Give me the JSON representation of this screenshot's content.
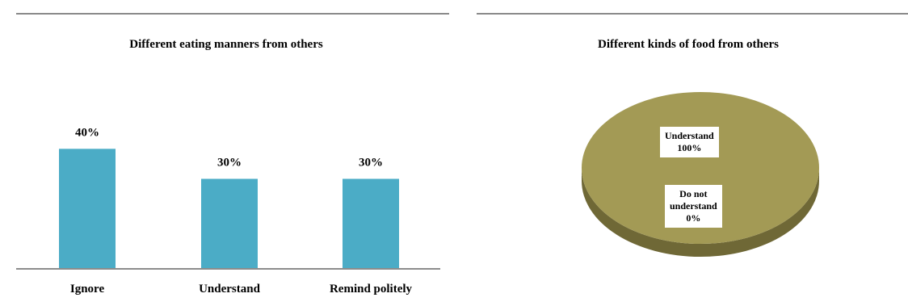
{
  "colors": {
    "bar": "#4bacc6",
    "pie_top": "#a39a55",
    "pie_side": "#6f6836",
    "axis": "#8c8c8c",
    "rule": "#8a8a8a"
  },
  "chart_data": [
    {
      "type": "bar",
      "title": "Different eating manners from others",
      "categories": [
        "Ignore",
        "Understand",
        "Remind politely"
      ],
      "values": [
        40,
        30,
        30
      ],
      "data_labels": [
        "40%",
        "30%",
        "30%"
      ],
      "ylim": [
        0,
        60
      ],
      "grid": false,
      "legend": "none"
    },
    {
      "type": "pie",
      "title": "Different kinds of food from others",
      "slices": [
        {
          "label": "Understand",
          "value": 100,
          "value_label": "100%"
        },
        {
          "label": "Do not understand",
          "value": 0,
          "value_label": "0%"
        }
      ],
      "label_lines": [
        [
          "Understand",
          "100%"
        ],
        [
          "Do not",
          "understand",
          "0%"
        ]
      ],
      "legend": "none",
      "style": "3d"
    }
  ]
}
